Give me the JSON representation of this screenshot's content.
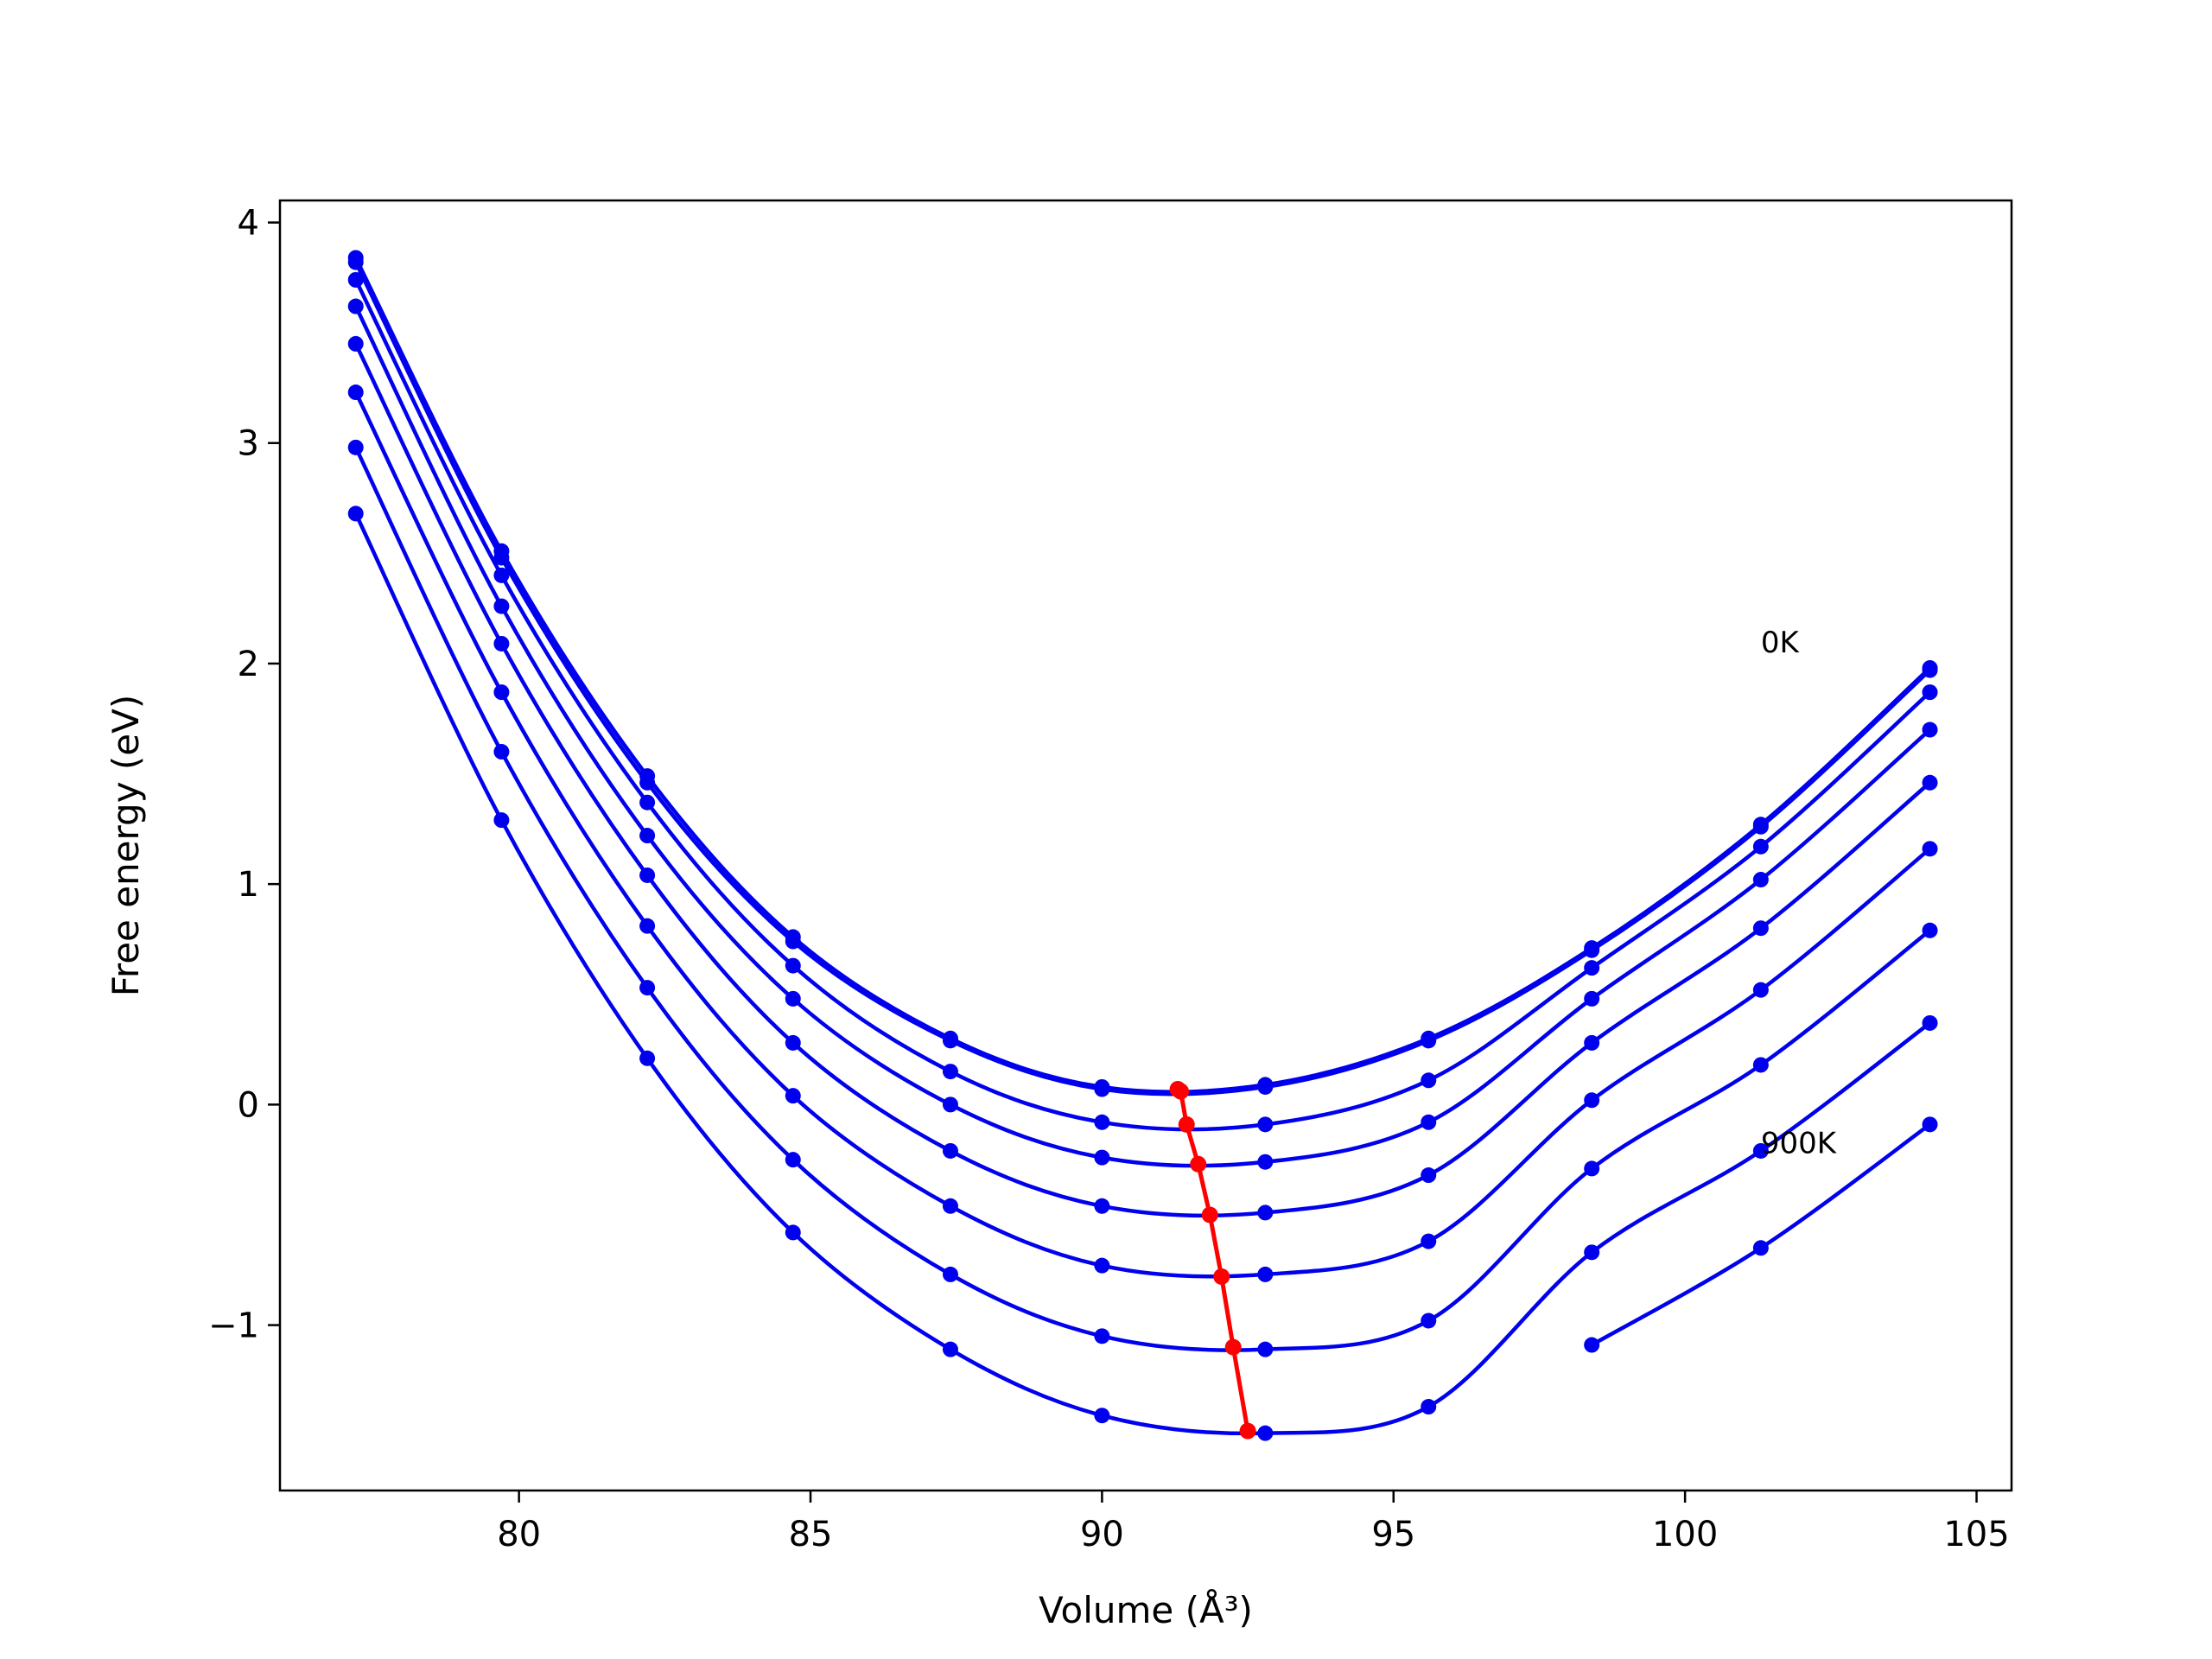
{
  "chart_data": {
    "type": "line",
    "title": "",
    "xlabel": "Volume (Å³)",
    "ylabel": "Free energy (eV)",
    "xlim": [
      75.9,
      105.6
    ],
    "ylim": [
      -1.75,
      4.1
    ],
    "xticks": [
      80,
      85,
      90,
      95,
      100,
      105
    ],
    "yticks": [
      -1,
      0,
      1,
      2,
      3,
      4
    ],
    "xtick_labels": [
      "80",
      "85",
      "90",
      "95",
      "100",
      "105"
    ],
    "ytick_labels": [
      "−1",
      "0",
      "1",
      "2",
      "3",
      "4"
    ],
    "grid": false,
    "legend": null,
    "x": [
      77.2,
      79.7,
      82.2,
      84.7,
      87.4,
      90.0,
      92.8,
      95.6,
      98.4,
      101.3,
      104.2
    ],
    "series": [
      {
        "values": [
          3.84,
          2.51,
          1.49,
          0.76,
          0.3,
          0.08,
          0.09,
          0.3,
          0.71,
          1.27,
          1.98
        ]
      },
      {
        "values": [
          3.82,
          2.48,
          1.46,
          0.74,
          0.29,
          0.07,
          0.08,
          0.29,
          0.7,
          1.26,
          1.97
        ]
      },
      {
        "values": [
          3.74,
          2.4,
          1.37,
          0.63,
          0.15,
          -0.08,
          -0.09,
          0.11,
          0.62,
          1.17,
          1.87
        ]
      },
      {
        "values": [
          3.62,
          2.26,
          1.22,
          0.48,
          0.0,
          -0.24,
          -0.26,
          -0.08,
          0.48,
          1.02,
          1.7
        ]
      },
      {
        "values": [
          3.45,
          2.09,
          1.04,
          0.28,
          -0.21,
          -0.46,
          -0.49,
          -0.32,
          0.28,
          0.8,
          1.46
        ]
      },
      {
        "values": [
          3.23,
          1.87,
          0.81,
          0.04,
          -0.46,
          -0.73,
          -0.77,
          -0.62,
          0.02,
          0.52,
          1.16
        ]
      },
      {
        "values": [
          2.98,
          1.6,
          0.53,
          -0.25,
          -0.77,
          -1.05,
          -1.11,
          -0.98,
          -0.29,
          0.18,
          0.79
        ]
      },
      {
        "values": [
          2.68,
          1.29,
          0.21,
          -0.58,
          -1.11,
          -1.41,
          -1.49,
          -1.37,
          -0.67,
          -0.21,
          0.37
        ]
      },
      {
        "values": [
          null,
          null,
          null,
          null,
          null,
          null,
          null,
          null,
          -1.09,
          -0.65,
          -0.09
        ]
      }
    ],
    "minima_path": {
      "x": [
        91.3,
        91.35,
        91.45,
        91.65,
        91.85,
        92.05,
        92.25,
        92.5
      ],
      "y": [
        0.07,
        0.06,
        -0.09,
        -0.27,
        -0.5,
        -0.78,
        -1.1,
        -1.48
      ]
    },
    "annotations": [
      {
        "text": "0K",
        "x": 101.3,
        "y": 2.05
      },
      {
        "text": "900K",
        "x": 101.3,
        "y": -0.22
      }
    ],
    "colors": {
      "curves": "#0000ee",
      "minima": "#ff0000",
      "axes": "#000000"
    }
  }
}
